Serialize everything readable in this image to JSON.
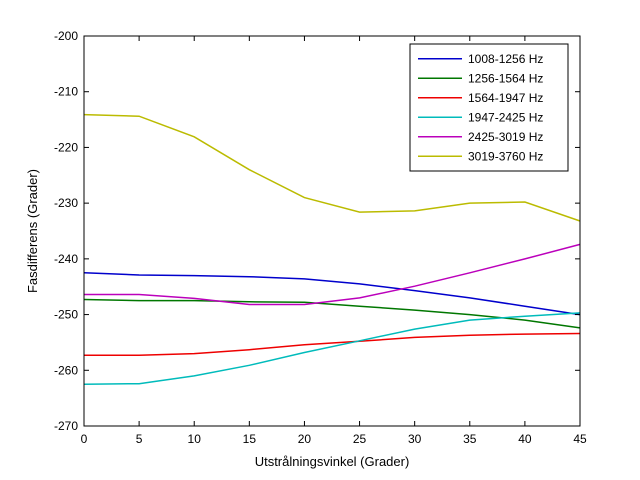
{
  "chart_data": {
    "type": "line",
    "title": "",
    "xlabel": "Utstrålningsvinkel (Grader)",
    "ylabel": "Fasdifferens (Grader)",
    "xlim": [
      0,
      45
    ],
    "ylim": [
      -270,
      -200
    ],
    "xticks": [
      0,
      5,
      10,
      15,
      20,
      25,
      30,
      35,
      40,
      45
    ],
    "yticks": [
      -270,
      -260,
      -250,
      -240,
      -230,
      -220,
      -210,
      -200
    ],
    "ytick_labels": [
      "-270",
      "-260",
      "-250",
      "-240",
      "-230",
      "-220",
      "-210",
      "-200"
    ],
    "grid": false,
    "legend_position": "top-right",
    "series": [
      {
        "name": "1008-1256 Hz",
        "color": "#0000cc",
        "x": [
          0,
          5,
          10,
          15,
          20,
          25,
          30,
          35,
          40,
          45
        ],
        "y": [
          -242.5,
          -242.9,
          -243.0,
          -243.2,
          -243.6,
          -244.5,
          -245.7,
          -247.0,
          -248.5,
          -250.0
        ]
      },
      {
        "name": "1256-1564 Hz",
        "color": "#007700",
        "x": [
          0,
          5,
          10,
          15,
          20,
          25,
          30,
          35,
          40,
          45
        ],
        "y": [
          -247.3,
          -247.5,
          -247.5,
          -247.7,
          -247.8,
          -248.5,
          -249.2,
          -250.0,
          -251.0,
          -252.4
        ]
      },
      {
        "name": "1564-1947 Hz",
        "color": "#ee0000",
        "x": [
          0,
          5,
          10,
          15,
          20,
          25,
          30,
          35,
          40,
          45
        ],
        "y": [
          -257.3,
          -257.3,
          -257.0,
          -256.3,
          -255.4,
          -254.8,
          -254.1,
          -253.7,
          -253.5,
          -253.4
        ]
      },
      {
        "name": "1947-2425 Hz",
        "color": "#00bbbb",
        "x": [
          0,
          5,
          10,
          15,
          20,
          25,
          30,
          35,
          40,
          45
        ],
        "y": [
          -262.5,
          -262.4,
          -261.0,
          -259.1,
          -256.8,
          -254.7,
          -252.6,
          -251.0,
          -250.3,
          -249.7
        ]
      },
      {
        "name": "2425-3019 Hz",
        "color": "#bb00bb",
        "x": [
          0,
          5,
          10,
          15,
          20,
          25,
          30,
          35,
          40,
          45
        ],
        "y": [
          -246.4,
          -246.4,
          -247.1,
          -248.2,
          -248.2,
          -247.0,
          -244.9,
          -242.5,
          -240.0,
          -237.4
        ]
      },
      {
        "name": "3019-3760 Hz",
        "color": "#bbbb00",
        "x": [
          0,
          5,
          10,
          15,
          20,
          25,
          30,
          35,
          40,
          45
        ],
        "y": [
          -214.1,
          -214.4,
          -218.1,
          -224.0,
          -229.0,
          -231.6,
          -231.4,
          -230.0,
          -229.8,
          -233.2
        ]
      }
    ]
  }
}
